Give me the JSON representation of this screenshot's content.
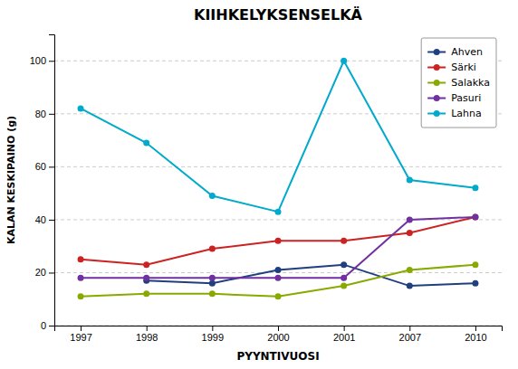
{
  "chart_data": {
    "type": "line",
    "title": "KIIHKELYKSENSELKÄ",
    "x_label": "PYYNTIVUOSI",
    "y_label": "KALAN KESKIPAINO (g)",
    "categories": [
      "1997",
      "1998",
      "1999",
      "2000",
      "2001",
      "2007",
      "2010"
    ],
    "series": [
      {
        "name": "Ahven",
        "color": "#1F3F7F",
        "values": [
          null,
          17,
          16,
          21,
          23,
          15,
          16
        ]
      },
      {
        "name": "Särki",
        "color": "#CC2222",
        "values": [
          25,
          23,
          29,
          32,
          32,
          35,
          41
        ]
      },
      {
        "name": "Salakka",
        "color": "#88AA00",
        "values": [
          11,
          12,
          12,
          11,
          15,
          21,
          23
        ]
      },
      {
        "name": "Pasuri",
        "color": "#7030A0",
        "values": [
          18,
          18,
          18,
          18,
          18,
          40,
          41
        ]
      },
      {
        "name": "Lahna",
        "color": "#00AACC",
        "values": [
          82,
          69,
          49,
          43,
          100,
          55,
          52
        ]
      }
    ],
    "ylim": [
      0,
      110
    ],
    "yticks": [
      0,
      20,
      40,
      60,
      80,
      100
    ],
    "grid": true,
    "legend": "upper right",
    "marker": "circle"
  }
}
